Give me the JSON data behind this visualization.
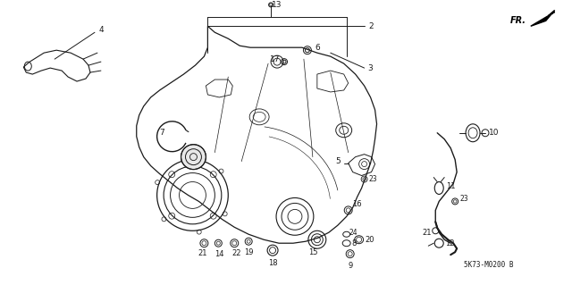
{
  "bg_color": "#ffffff",
  "line_color": "#1a1a1a",
  "diagram_code": "5K73-M0200 B",
  "fr_label": "FR.",
  "fig_width": 6.4,
  "fig_height": 3.19,
  "dpi": 100
}
